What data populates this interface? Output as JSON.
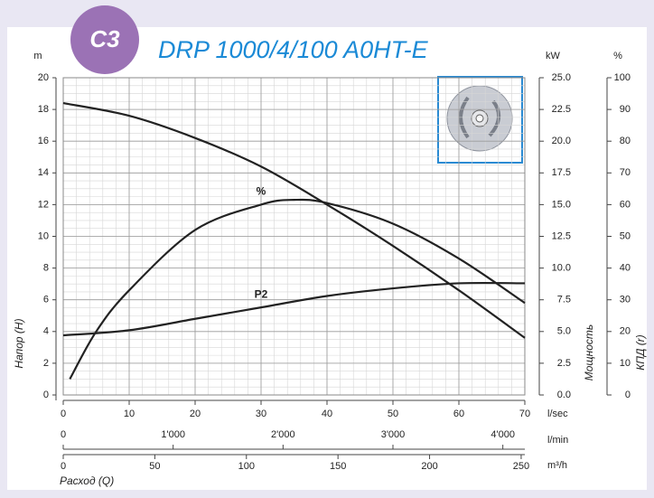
{
  "chart_data": {
    "type": "line",
    "badge": "C3",
    "title": "DRP 1000/4/100 A0HT-E",
    "xlabel": "Расход (Q)",
    "ylabel": "Напор (H)",
    "y2label": "Мощность",
    "y3label": "КПД (r)",
    "yunit": "m",
    "y2unit": "kW",
    "y3unit": "%",
    "xunit": "l/sec",
    "x2unit": "l/min",
    "x3unit": "m³/h",
    "xlim": [
      0,
      70
    ],
    "xticks": [
      0,
      10,
      20,
      30,
      40,
      50,
      60,
      70
    ],
    "x2lim": [
      0,
      4200
    ],
    "x2ticks": [
      0,
      {
        "value": 1000,
        "label": "1'000"
      },
      {
        "value": 2000,
        "label": "2'000"
      },
      {
        "value": 3000,
        "label": "3'000"
      },
      {
        "value": 4000,
        "label": "4'000"
      }
    ],
    "x3lim": [
      0,
      252
    ],
    "x3ticks": [
      0,
      50,
      100,
      150,
      200,
      250
    ],
    "ylim": [
      0,
      20
    ],
    "yticks": [
      0,
      2,
      4,
      6,
      8,
      10,
      12,
      14,
      16,
      18,
      20
    ],
    "y2lim": [
      0,
      25
    ],
    "y2ticks": [
      {
        "value": 0,
        "label": "0.0"
      },
      2.5,
      {
        "value": 5,
        "label": "5.0"
      },
      7.5,
      {
        "value": 10,
        "label": "10.0"
      },
      12.5,
      {
        "value": 15,
        "label": "15.0"
      },
      17.5,
      {
        "value": 20,
        "label": "20.0"
      },
      22.5,
      {
        "value": 25,
        "label": "25.0"
      }
    ],
    "y3lim": [
      0,
      100
    ],
    "y3ticks": [
      0,
      10,
      20,
      30,
      40,
      50,
      60,
      70,
      80,
      90,
      100
    ],
    "grid": true,
    "series": [
      {
        "color": "#222222",
        "x": [
          0,
          10,
          20,
          30,
          40,
          50,
          60,
          70
        ],
        "values": [
          18.4,
          17.6,
          16.2,
          14.4,
          12.0,
          9.4,
          6.6,
          3.6
        ]
      },
      {
        "name": "%",
        "color": "#222222",
        "axis": "y3",
        "x": [
          1,
          5,
          10,
          20,
          30,
          35,
          40,
          50,
          60,
          70
        ],
        "values": [
          5,
          20,
          33,
          52,
          60,
          61.5,
          60.5,
          54,
          43,
          29
        ]
      },
      {
        "name": "P2",
        "color": "#222222",
        "axis": "y2",
        "x": [
          0,
          10,
          20,
          30,
          40,
          50,
          60,
          70
        ],
        "values": [
          4.7,
          5.1,
          6.0,
          6.9,
          7.8,
          8.4,
          8.8,
          8.8
        ]
      }
    ]
  }
}
